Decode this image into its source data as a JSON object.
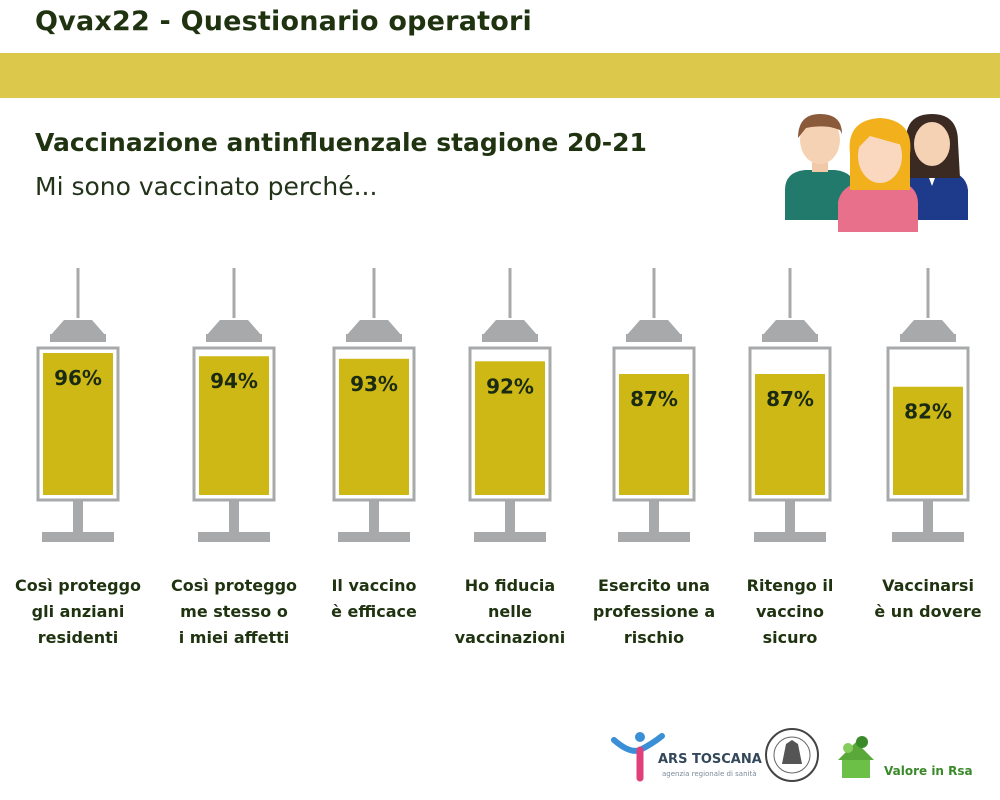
{
  "header": {
    "title": "Qvax22 - Questionario operatori",
    "subtitle": "Vaccinazione antinfluenzale  stagione 20-21",
    "question": "Mi sono vaccinato perché..."
  },
  "colors": {
    "band": "#dcc84a",
    "fill": "#cdb815",
    "syringe_gray": "#a7a9ab",
    "text": "#1f3310"
  },
  "chart_data": {
    "type": "bar",
    "categories": [
      "Così proteggo gli anziani residenti",
      "Così proteggo me stesso o i miei affetti",
      "Il vaccino è efficace",
      "Ho fiducia nelle vaccinazioni",
      "Esercito una professione a rischio",
      "Ritengo il vaccino sicuro",
      "Vaccinarsi è un dovere"
    ],
    "label_lines": [
      [
        "Così proteggo",
        "gli anziani",
        "residenti"
      ],
      [
        "Così proteggo",
        "me stesso o",
        "i miei affetti"
      ],
      [
        "Il vaccino",
        "è efficace"
      ],
      [
        "Ho fiducia",
        "nelle",
        "vaccinazioni"
      ],
      [
        "Esercito una",
        "professione a",
        "rischio"
      ],
      [
        "Ritengo il",
        "vaccino",
        "sicuro"
      ],
      [
        "Vaccinarsi",
        "è un dovere"
      ]
    ],
    "values": [
      96,
      94,
      93,
      92,
      87,
      87,
      82
    ],
    "value_labels": [
      "96%",
      "94%",
      "93%",
      "92%",
      "87%",
      "87%",
      "82%"
    ],
    "ylim": [
      0,
      100
    ]
  },
  "logos": {
    "ars_name": "ARS TOSCANA",
    "ars_tagline": "agenzia regionale di sanità",
    "rsa_name": "Valore in Rsa"
  }
}
